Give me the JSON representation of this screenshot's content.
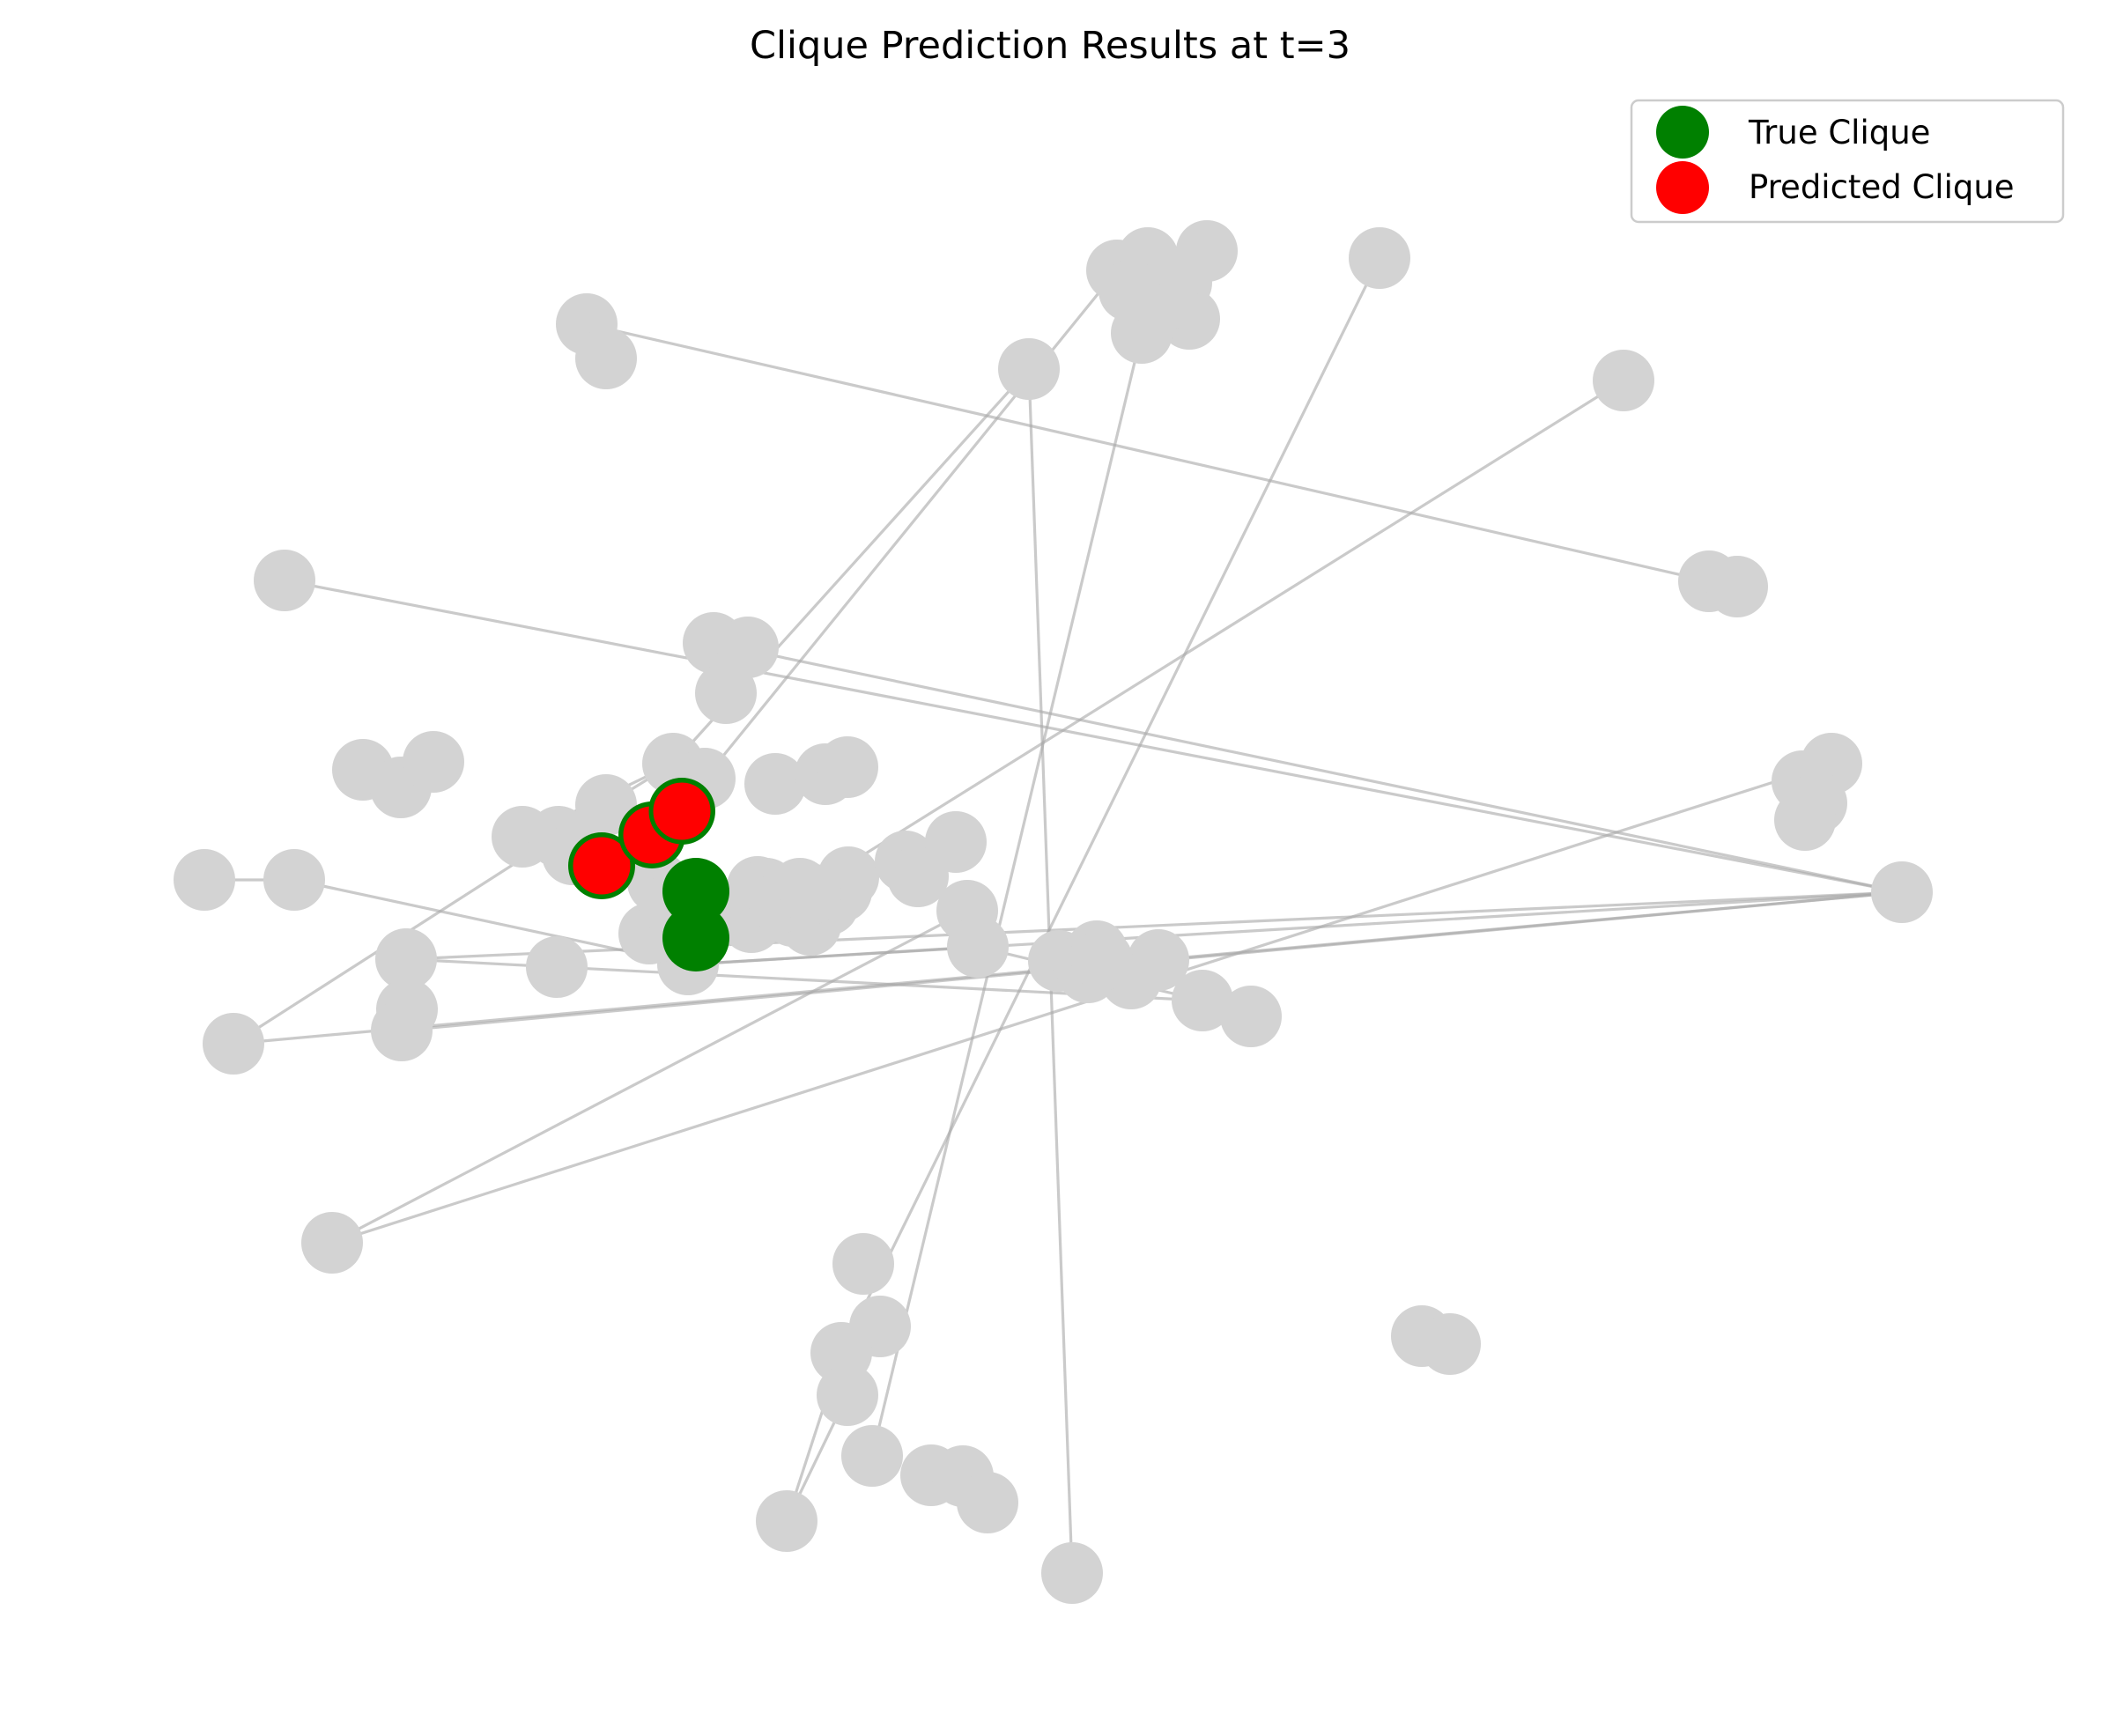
{
  "figure": {
    "title": "Clique Prediction Results at t=3"
  },
  "legend": {
    "items": [
      {
        "label": "True Clique",
        "color": "#008000"
      },
      {
        "label": "Predicted Clique",
        "color": "#ff0000"
      }
    ]
  },
  "colors": {
    "node_default": "#d3d3d3",
    "true_clique": "#008000",
    "predicted_clique": "#ff0000",
    "edge": "#aaaaaa"
  },
  "graph": {
    "nodes": 80,
    "true_clique_size": 5,
    "predicted_clique_size": 3
  }
}
